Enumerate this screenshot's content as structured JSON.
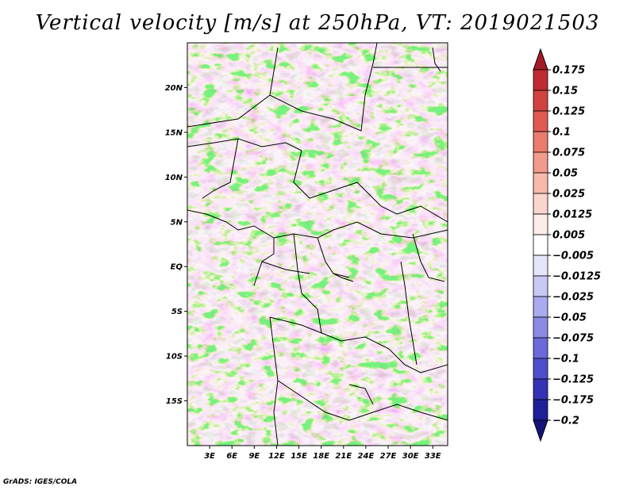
{
  "title": "Vertical velocity [m/s] at 250hPa, VT: 2019021503",
  "footer": "GrADS: IGES/COLA",
  "chart_data": {
    "type": "heatmap",
    "title": "Vertical velocity [m/s] at 250hPa, VT: 2019021503",
    "variable": "Vertical velocity",
    "units": "m/s",
    "level": "250hPa",
    "valid_time": "2019021503",
    "lon_range": [
      0,
      35
    ],
    "lat_range": [
      -20,
      25
    ],
    "x_ticks": [
      3,
      6,
      9,
      12,
      15,
      18,
      21,
      24,
      27,
      30,
      33
    ],
    "x_tick_labels": [
      "3E",
      "6E",
      "9E",
      "12E",
      "15E",
      "18E",
      "21E",
      "24E",
      "27E",
      "30E",
      "33E"
    ],
    "y_ticks": [
      20,
      15,
      10,
      5,
      0,
      -5,
      -10,
      -15
    ],
    "y_tick_labels": [
      "20N",
      "15N",
      "10N",
      "5N",
      "EQ",
      "5S",
      "10S",
      "15S"
    ],
    "colorbar": {
      "labels": [
        "0.175",
        "0.15",
        "0.125",
        "0.1",
        "0.075",
        "0.05",
        "0.025",
        "0.0125",
        "0.005",
        "−0.005",
        "−0.0125",
        "−0.025",
        "−0.05",
        "−0.075",
        "−0.1",
        "−0.125",
        "−0.175",
        "−0.2"
      ],
      "colors": [
        "#a61b29",
        "#c02a31",
        "#d2433f",
        "#e15a52",
        "#eb7b6c",
        "#f29a8b",
        "#f8b9ad",
        "#fbd5cd",
        "#fdece8",
        "#ffffff",
        "#e6e6fb",
        "#c9c9f6",
        "#aaaaef",
        "#8b8be6",
        "#6a6adb",
        "#4f4fcc",
        "#3333b3",
        "#1f1f99",
        "#141478"
      ]
    }
  }
}
